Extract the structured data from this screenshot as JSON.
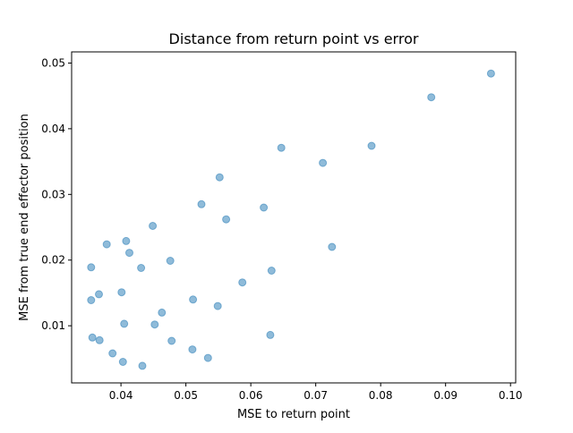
{
  "chart_data": {
    "type": "scatter",
    "title": "Distance from return point vs error",
    "xlabel": "MSE to return point",
    "ylabel": "MSE from true end effector position",
    "xlim": [
      0.0324,
      0.1008
    ],
    "ylim": [
      0.0013,
      0.0517
    ],
    "xticks": [
      0.04,
      0.05,
      0.06,
      0.07,
      0.08,
      0.09,
      0.1
    ],
    "xtick_labels": [
      "0.04",
      "0.05",
      "0.06",
      "0.07",
      "0.08",
      "0.09",
      "0.10"
    ],
    "yticks": [
      0.01,
      0.02,
      0.03,
      0.04,
      0.05
    ],
    "ytick_labels": [
      "0.01",
      "0.02",
      "0.03",
      "0.04",
      "0.05"
    ],
    "grid": false,
    "marker_color": "#1f77b4",
    "marker_alpha": 0.5,
    "points": [
      {
        "x": 0.097,
        "y": 0.0484
      },
      {
        "x": 0.0878,
        "y": 0.0448
      },
      {
        "x": 0.0647,
        "y": 0.0371
      },
      {
        "x": 0.0786,
        "y": 0.0374
      },
      {
        "x": 0.0711,
        "y": 0.0348
      },
      {
        "x": 0.0552,
        "y": 0.0326
      },
      {
        "x": 0.0524,
        "y": 0.0285
      },
      {
        "x": 0.0562,
        "y": 0.0262
      },
      {
        "x": 0.062,
        "y": 0.028
      },
      {
        "x": 0.0449,
        "y": 0.0252
      },
      {
        "x": 0.0378,
        "y": 0.0224
      },
      {
        "x": 0.0408,
        "y": 0.0229
      },
      {
        "x": 0.0413,
        "y": 0.0211
      },
      {
        "x": 0.0725,
        "y": 0.022
      },
      {
        "x": 0.0354,
        "y": 0.0189
      },
      {
        "x": 0.0431,
        "y": 0.0188
      },
      {
        "x": 0.0476,
        "y": 0.0199
      },
      {
        "x": 0.0632,
        "y": 0.0184
      },
      {
        "x": 0.0587,
        "y": 0.0166
      },
      {
        "x": 0.0366,
        "y": 0.0148
      },
      {
        "x": 0.0401,
        "y": 0.0151
      },
      {
        "x": 0.0354,
        "y": 0.0139
      },
      {
        "x": 0.0511,
        "y": 0.014
      },
      {
        "x": 0.0549,
        "y": 0.013
      },
      {
        "x": 0.0463,
        "y": 0.012
      },
      {
        "x": 0.0405,
        "y": 0.0103
      },
      {
        "x": 0.0452,
        "y": 0.0102
      },
      {
        "x": 0.0356,
        "y": 0.0082
      },
      {
        "x": 0.0367,
        "y": 0.0078
      },
      {
        "x": 0.063,
        "y": 0.0086
      },
      {
        "x": 0.0478,
        "y": 0.0077
      },
      {
        "x": 0.051,
        "y": 0.0064
      },
      {
        "x": 0.0387,
        "y": 0.0058
      },
      {
        "x": 0.0534,
        "y": 0.0051
      },
      {
        "x": 0.0403,
        "y": 0.0045
      },
      {
        "x": 0.0433,
        "y": 0.0039
      }
    ]
  }
}
